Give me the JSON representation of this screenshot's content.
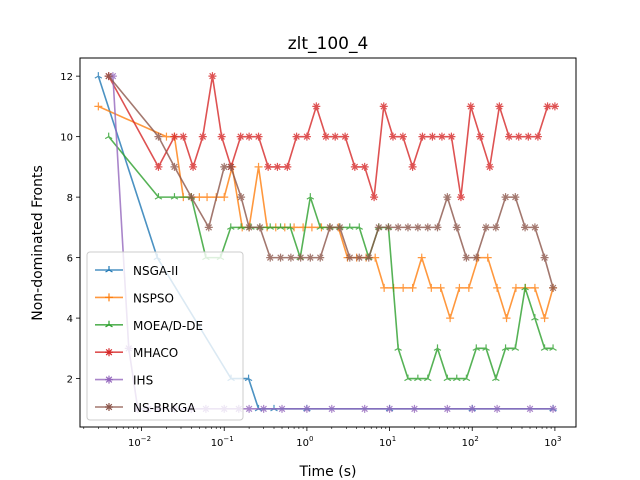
{
  "chart_data": {
    "type": "line",
    "title": "zlt_100_4",
    "xlabel": "Time (s)",
    "ylabel": "Non-dominated Fronts",
    "xscale": "log",
    "xlim": [
      0.0018,
      1800
    ],
    "ylim": [
      0.4,
      12.6
    ],
    "x_ticks": [
      0.01,
      0.1,
      1,
      10,
      100,
      1000
    ],
    "x_tick_labels": [
      {
        "base": "10",
        "exp": "−2"
      },
      {
        "base": "10",
        "exp": "−1"
      },
      {
        "base": "10",
        "exp": "0"
      },
      {
        "base": "10",
        "exp": "1"
      },
      {
        "base": "10",
        "exp": "2"
      },
      {
        "base": "10",
        "exp": "3"
      }
    ],
    "y_ticks": [
      2,
      4,
      6,
      8,
      10,
      12
    ],
    "y_tick_labels": [
      "2",
      "4",
      "6",
      "8",
      "10",
      "12"
    ],
    "grid": false,
    "legend_position": "lower-left",
    "series": [
      {
        "name": "NSGA-II",
        "color": "#1f77b4",
        "marker": "tri",
        "x": [
          0.003,
          0.0155,
          0.121,
          0.197,
          0.26,
          0.4,
          1,
          10,
          100,
          950
        ],
        "y": [
          12,
          6,
          2,
          2,
          1,
          1,
          1,
          1,
          1,
          1
        ]
      },
      {
        "name": "NSPSO",
        "color": "#ff7f0e",
        "marker": "plus",
        "x": [
          0.003,
          0.02,
          0.025,
          0.032,
          0.04,
          0.05,
          0.062,
          0.08,
          0.1,
          0.125,
          0.165,
          0.2,
          0.26,
          0.33,
          0.42,
          0.54,
          0.7,
          0.9,
          1.15,
          1.5,
          1.9,
          2.4,
          3.1,
          4,
          5.2,
          6.7,
          8.6,
          11.2,
          14.6,
          19,
          24.5,
          32,
          41.5,
          54,
          70,
          91,
          118,
          154,
          200,
          260,
          338,
          440,
          573,
          750,
          950
        ],
        "y": [
          11,
          10,
          10,
          8,
          8,
          8,
          8,
          8,
          8,
          9,
          7,
          7,
          9,
          7,
          7,
          7,
          7,
          7,
          7,
          7,
          7,
          7,
          6,
          6,
          6,
          6,
          5,
          5,
          5,
          5,
          6,
          5,
          5,
          4,
          5,
          5,
          6,
          6,
          5,
          4,
          5,
          5,
          5,
          4,
          5
        ]
      },
      {
        "name": "MOEA/D-DE",
        "color": "#2ca02c",
        "marker": "tri",
        "x": [
          0.004,
          0.016,
          0.025,
          0.04,
          0.06,
          0.09,
          0.12,
          0.16,
          0.21,
          0.27,
          0.36,
          0.48,
          0.63,
          0.83,
          1.1,
          1.45,
          1.9,
          2.5,
          3.3,
          4.3,
          5.6,
          7.4,
          9.7,
          12.7,
          16.7,
          22,
          29,
          38,
          50,
          65,
          85,
          112,
          147,
          193,
          253,
          332,
          436,
          573,
          750,
          950
        ],
        "y": [
          10,
          8,
          8,
          8,
          6,
          6,
          7,
          7,
          7,
          7,
          7,
          7,
          7,
          6,
          8,
          7,
          7,
          7,
          7,
          7,
          6,
          7,
          7,
          3,
          2,
          2,
          2,
          3,
          2,
          2,
          2,
          3,
          3,
          2,
          3,
          3,
          5,
          4,
          3,
          3
        ]
      },
      {
        "name": "MHACO",
        "color": "#d62728",
        "marker": "star",
        "x": [
          0.004,
          0.016,
          0.025,
          0.032,
          0.042,
          0.055,
          0.072,
          0.093,
          0.121,
          0.158,
          0.2,
          0.26,
          0.34,
          0.44,
          0.58,
          0.75,
          1,
          1.3,
          1.7,
          2.2,
          2.9,
          3.8,
          5,
          6.5,
          8.5,
          11,
          14.5,
          19,
          25,
          33,
          43,
          56,
          73,
          96,
          125,
          163,
          213,
          279,
          365,
          477,
          623,
          815,
          1000
        ],
        "y": [
          12,
          9,
          10,
          10,
          9,
          10,
          12,
          10,
          9,
          10,
          10,
          10,
          9,
          9,
          9,
          10,
          10,
          11,
          10,
          10,
          10,
          9,
          9,
          8,
          11,
          10,
          10,
          9,
          10,
          10,
          10,
          10,
          8,
          11,
          10,
          9,
          11,
          10,
          10,
          10,
          10,
          11,
          11
        ]
      },
      {
        "name": "IHS",
        "color": "#9467bd",
        "marker": "star",
        "x": [
          0.0045,
          0.007,
          0.009,
          0.012,
          0.016,
          0.025,
          0.04,
          0.06,
          0.1,
          0.15,
          0.2,
          0.3,
          0.5,
          1,
          2,
          5,
          10,
          20,
          50,
          100,
          200,
          500,
          950
        ],
        "y": [
          12,
          3,
          1,
          1,
          1,
          1,
          1,
          1,
          1,
          1,
          1,
          1,
          1,
          1,
          1,
          1,
          1,
          1,
          1,
          1,
          1,
          1,
          1
        ]
      },
      {
        "name": "NS-BRKGA",
        "color": "#8c564b",
        "marker": "star",
        "x": [
          0.004,
          0.016,
          0.025,
          0.04,
          0.065,
          0.1,
          0.12,
          0.16,
          0.2,
          0.27,
          0.36,
          0.48,
          0.64,
          0.84,
          1.1,
          1.45,
          1.9,
          2.5,
          3.3,
          4.3,
          5.6,
          7.4,
          9.7,
          12.7,
          16.7,
          22,
          29,
          38,
          50,
          65,
          85,
          112,
          147,
          193,
          253,
          332,
          436,
          573,
          750,
          950
        ],
        "y": [
          12,
          10,
          9,
          8,
          7,
          9,
          9,
          8,
          7,
          7,
          6,
          6,
          6,
          6,
          6,
          6,
          7,
          7,
          6,
          6,
          6,
          7,
          7,
          7,
          7,
          7,
          7,
          7,
          8,
          7,
          6,
          6,
          7,
          7,
          8,
          8,
          7,
          7,
          6,
          5
        ]
      }
    ]
  }
}
